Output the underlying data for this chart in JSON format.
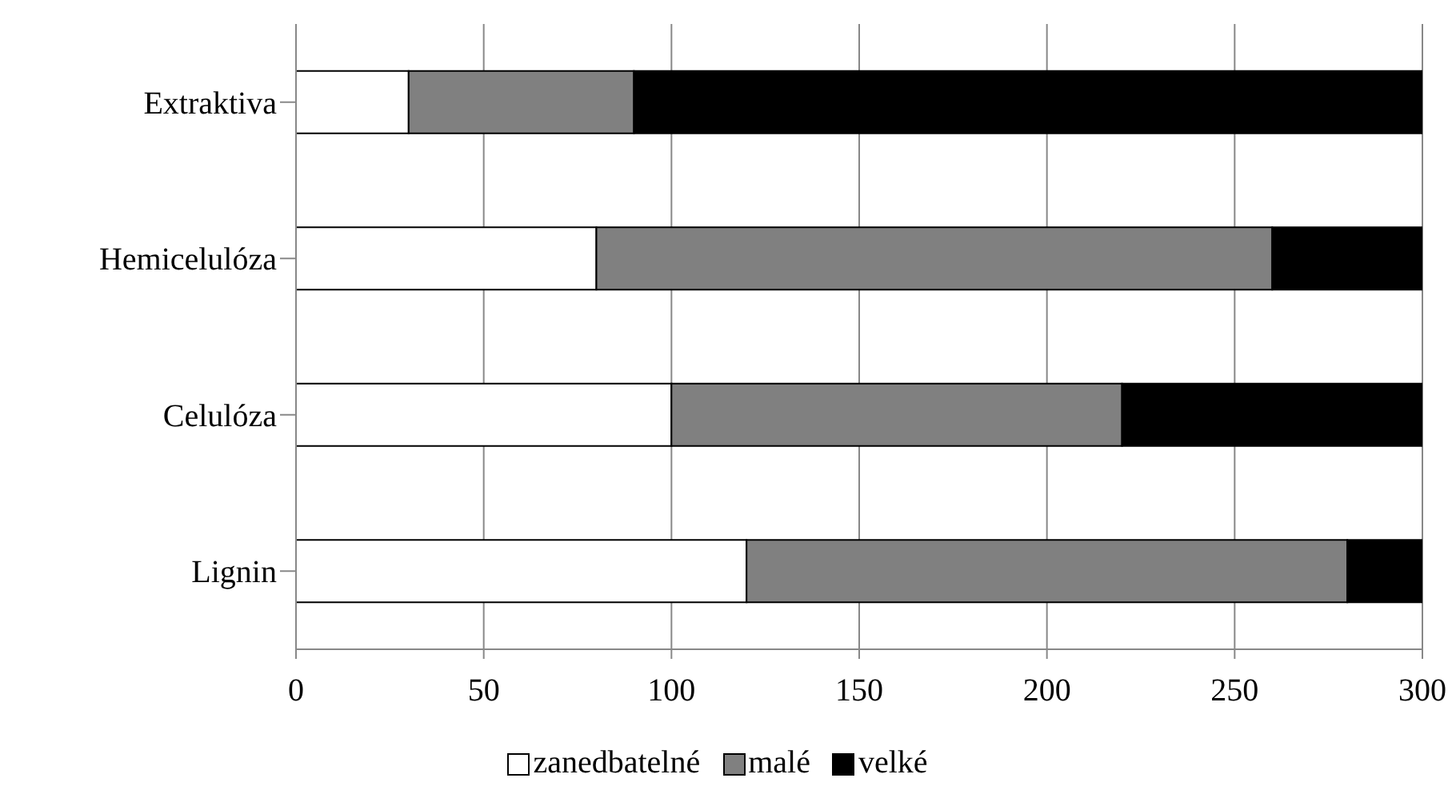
{
  "chart_data": {
    "type": "bar",
    "orientation": "horizontal",
    "stacked": true,
    "categories": [
      "Extraktiva",
      "Hemicelulóza",
      "Celulóza",
      "Lignin"
    ],
    "series": [
      {
        "name": "zanedbatelné",
        "color": "#ffffff",
        "values": [
          30,
          80,
          100,
          120
        ]
      },
      {
        "name": "malé",
        "color": "#808080",
        "values": [
          60,
          180,
          120,
          160
        ]
      },
      {
        "name": "velké",
        "color": "#000000",
        "values": [
          210,
          40,
          80,
          20
        ]
      }
    ],
    "xlim": [
      0,
      300
    ],
    "xticks": [
      0,
      50,
      100,
      150,
      200,
      250,
      300
    ],
    "grid": "x",
    "legend": "bottom"
  }
}
